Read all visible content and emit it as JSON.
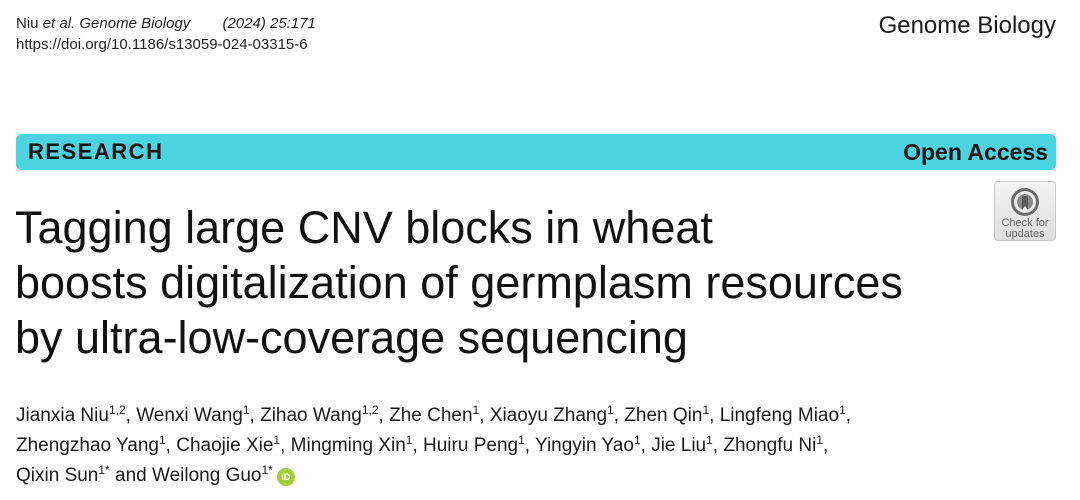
{
  "header": {
    "citation_authors": "Niu",
    "citation_etal": "et al.",
    "citation_journal": "Genome Biology",
    "citation_year_vol": "(2024) 25:171",
    "doi": "https://doi.org/10.1186/s13059-024-03315-6",
    "journal_name": "Genome Biology"
  },
  "banner": {
    "article_type": "RESEARCH",
    "access": "Open Access",
    "color": "#4bd3e0"
  },
  "crossmark": {
    "line1": "Check for",
    "line2": "updates",
    "icon": "crossmark-icon"
  },
  "title_lines": [
    "Tagging large CNV blocks in wheat",
    "boosts digitalization of germplasm resources",
    "by ultra-low-coverage sequencing"
  ],
  "authors": [
    {
      "name": "Jianxia Niu",
      "aff": "1,2"
    },
    {
      "name": "Wenxi Wang",
      "aff": "1"
    },
    {
      "name": "Zihao Wang",
      "aff": "1,2"
    },
    {
      "name": "Zhe Chen",
      "aff": "1"
    },
    {
      "name": "Xiaoyu Zhang",
      "aff": "1"
    },
    {
      "name": "Zhen Qin",
      "aff": "1"
    },
    {
      "name": "Lingfeng Miao",
      "aff": "1"
    },
    {
      "name": "Zhengzhao Yang",
      "aff": "1"
    },
    {
      "name": "Chaojie Xie",
      "aff": "1"
    },
    {
      "name": "Mingming Xin",
      "aff": "1"
    },
    {
      "name": "Huiru Peng",
      "aff": "1"
    },
    {
      "name": "Yingyin Yao",
      "aff": "1"
    },
    {
      "name": "Jie Liu",
      "aff": "1"
    },
    {
      "name": "Zhongfu Ni",
      "aff": "1"
    },
    {
      "name": "Qixin Sun",
      "aff": "1*"
    },
    {
      "name": "Weilong Guo",
      "aff": "1*"
    }
  ],
  "author_separator": ", ",
  "author_last_joiner": " and ",
  "orcid": {
    "label": "iD",
    "icon": "orcid-icon",
    "color": "#a6ce39"
  }
}
